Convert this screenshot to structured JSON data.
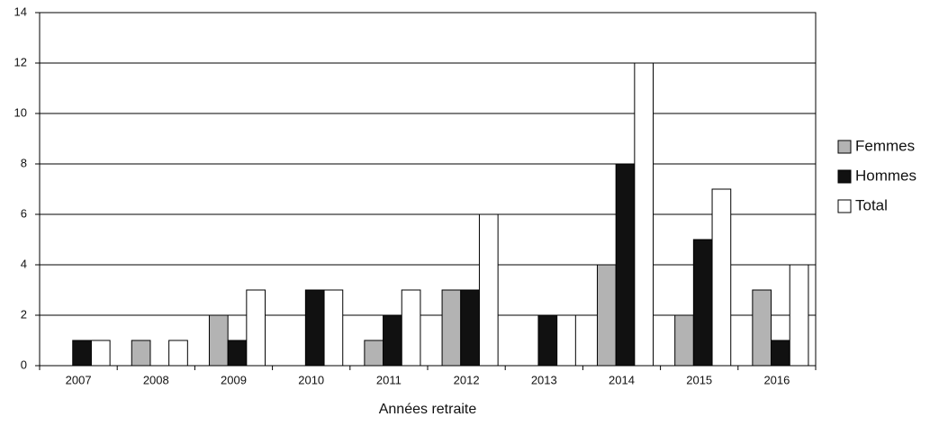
{
  "chart_data": {
    "type": "bar",
    "xlabel": "Années retraite",
    "categories": [
      "2007",
      "2008",
      "2009",
      "2010",
      "2011",
      "2012",
      "2013",
      "2014",
      "2015",
      "2016"
    ],
    "series": [
      {
        "name": "Femmes",
        "color": "#b3b3b3",
        "values": [
          0,
          1,
          2,
          0,
          1,
          3,
          0,
          4,
          2,
          3
        ]
      },
      {
        "name": "Hommes",
        "color": "#111111",
        "values": [
          1,
          0,
          1,
          3,
          2,
          3,
          2,
          8,
          5,
          1
        ]
      },
      {
        "name": "Total",
        "color": "#ffffff",
        "values": [
          1,
          1,
          3,
          3,
          3,
          6,
          2,
          12,
          7,
          4
        ]
      }
    ],
    "ylim": [
      0,
      14
    ],
    "yticks": [
      0,
      2,
      4,
      6,
      8,
      10,
      12,
      14
    ],
    "grid": true,
    "legend": "right"
  }
}
